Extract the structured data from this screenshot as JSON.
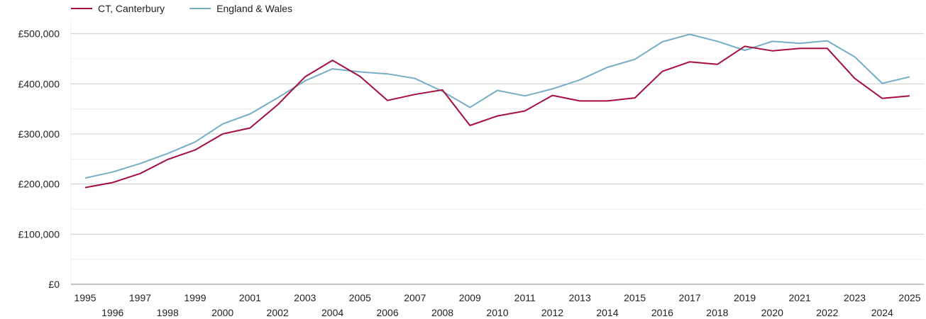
{
  "chart_data": {
    "type": "line",
    "title": "",
    "xlabel": "",
    "ylabel": "",
    "x": [
      1995,
      1996,
      1997,
      1998,
      1999,
      2000,
      2001,
      2002,
      2003,
      2004,
      2005,
      2006,
      2007,
      2008,
      2009,
      2010,
      2011,
      2012,
      2013,
      2014,
      2015,
      2016,
      2017,
      2018,
      2019,
      2020,
      2021,
      2022,
      2023,
      2024,
      2025
    ],
    "ylim": [
      0,
      500000
    ],
    "yticks": [
      0,
      100000,
      200000,
      300000,
      400000,
      500000
    ],
    "ytick_labels": [
      "£0",
      "£100,000",
      "£200,000",
      "£300,000",
      "£400,000",
      "£500,000"
    ],
    "xtick_labels": [
      "1995",
      "1996",
      "1997",
      "1998",
      "1999",
      "2000",
      "2001",
      "2002",
      "2003",
      "2004",
      "2005",
      "2006",
      "2007",
      "2008",
      "2009",
      "2010",
      "2011",
      "2012",
      "2013",
      "2014",
      "2015",
      "2016",
      "2017",
      "2018",
      "2019",
      "2020",
      "2021",
      "2022",
      "2023",
      "2024",
      "2025"
    ],
    "grid": true,
    "legend_position": "top-left",
    "series": [
      {
        "name": "CT, Canterbury",
        "color": "#a50f3a",
        "values": [
          193000,
          203000,
          221000,
          249000,
          268000,
          300000,
          312000,
          358000,
          414000,
          447000,
          415000,
          367000,
          379000,
          388000,
          317000,
          336000,
          346000,
          377000,
          366000,
          366000,
          372000,
          425000,
          444000,
          439000,
          475000,
          466000,
          471000,
          471000,
          411000,
          371000,
          376000
        ]
      },
      {
        "name": "England & Wales",
        "color": "#74adc8",
        "values": [
          212000,
          224000,
          241000,
          261000,
          284000,
          320000,
          340000,
          372000,
          406000,
          430000,
          424000,
          420000,
          411000,
          385000,
          353000,
          387000,
          376000,
          390000,
          408000,
          433000,
          449000,
          484000,
          499000,
          485000,
          467000,
          485000,
          481000,
          486000,
          454000,
          401000,
          414000
        ]
      }
    ]
  }
}
